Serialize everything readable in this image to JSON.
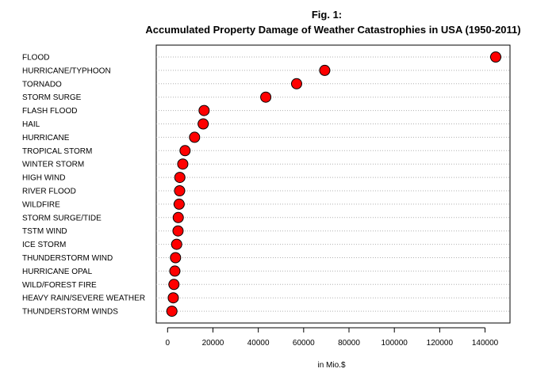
{
  "chart_data": {
    "type": "scatter",
    "subtype": "dot-plot",
    "title": "Fig. 1:",
    "subtitle": "Accumulated Property Damage of Weather Catastrophies in USA (1950-2011)",
    "xlabel": "in Mio.$",
    "ylabel": "",
    "xlim": [
      -5000,
      151000
    ],
    "xticks": [
      0,
      20000,
      40000,
      60000,
      80000,
      100000,
      120000,
      140000
    ],
    "xtick_labels": [
      "0",
      "20000",
      "40000",
      "60000",
      "80000",
      "100000",
      "120000",
      "140000"
    ],
    "grid": "horizontal dotted",
    "point_fill": "#ff0000",
    "point_stroke": "#000000",
    "categories": [
      "FLOOD",
      "HURRICANE/TYPHOON",
      "TORNADO",
      "STORM SURGE",
      "FLASH FLOOD",
      "HAIL",
      "HURRICANE",
      "TROPICAL STORM",
      "WINTER STORM",
      "HIGH WIND",
      "RIVER FLOOD",
      "WILDFIRE",
      "STORM SURGE/TIDE",
      "TSTM WIND",
      "ICE STORM",
      "THUNDERSTORM WIND",
      "HURRICANE OPAL",
      "WILD/FOREST FIRE",
      "HEAVY RAIN/SEVERE WEATHER",
      "THUNDERSTORM WINDS"
    ],
    "values": [
      144700,
      69300,
      56900,
      43300,
      16100,
      15700,
      11900,
      7700,
      6700,
      5400,
      5300,
      5100,
      4700,
      4600,
      4000,
      3500,
      3200,
      2800,
      2500,
      1900
    ]
  }
}
